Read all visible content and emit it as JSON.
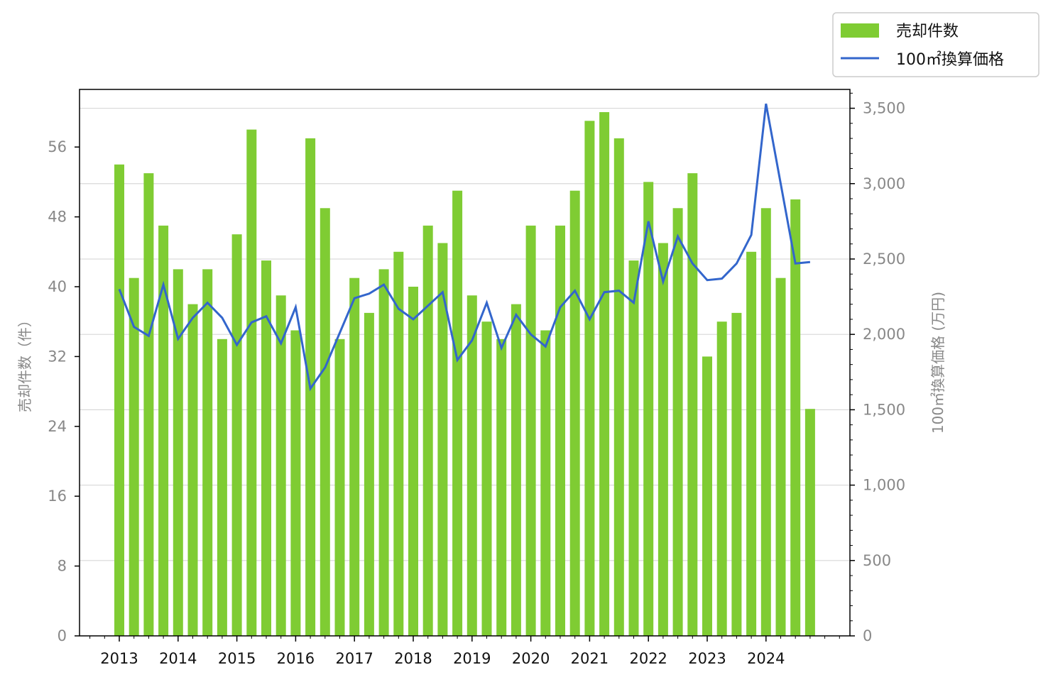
{
  "chart_data": {
    "type": "bar+line",
    "title": "",
    "x_tick_labels": [
      "2013",
      "2014",
      "2015",
      "2016",
      "2017",
      "2018",
      "2019",
      "2020",
      "2021",
      "2022",
      "2023",
      "2024"
    ],
    "ylabel_left": "売却件数（件）",
    "ylabel_right": "100㎡換算価格 (万円)",
    "ylim_left": [
      0,
      62.6
    ],
    "ylim_right": [
      0,
      3625
    ],
    "yticks_left": [
      "0",
      "8",
      "16",
      "24",
      "32",
      "40",
      "48",
      "56"
    ],
    "yticks_right": [
      "0",
      "500",
      "1,000",
      "1,500",
      "2,000",
      "2,500",
      "3,000",
      "3,500"
    ],
    "grid": "horizontal (right axis)",
    "legend_position": "top-right, outside plot",
    "colors": {
      "bars": "#7fcc33",
      "line": "#3366cc"
    },
    "series": [
      {
        "name": "売却件数",
        "type": "bar",
        "axis": "left",
        "values": [
          54,
          41,
          53,
          47,
          42,
          38,
          42,
          34,
          46,
          58,
          43,
          39,
          35,
          57,
          49,
          34,
          41,
          37,
          42,
          44,
          40,
          47,
          45,
          51,
          39,
          36,
          34,
          38,
          47,
          35,
          47,
          51,
          59,
          60,
          57,
          43,
          52,
          45,
          49,
          53,
          32,
          36,
          37,
          44,
          49,
          41,
          50,
          26
        ]
      },
      {
        "name": "100㎡換算価格",
        "type": "line",
        "axis": "right",
        "values": [
          2300,
          2050,
          1990,
          2330,
          1970,
          2110,
          2210,
          2110,
          1930,
          2080,
          2120,
          1940,
          2180,
          1640,
          1780,
          2010,
          2240,
          2270,
          2330,
          2170,
          2100,
          2190,
          2280,
          1830,
          1960,
          2210,
          1910,
          2130,
          2000,
          1920,
          2180,
          2290,
          2100,
          2280,
          2290,
          2210,
          2750,
          2350,
          2650,
          2470,
          2360,
          2370,
          2470,
          2660,
          3530,
          3000,
          2470,
          2480
        ]
      }
    ]
  }
}
